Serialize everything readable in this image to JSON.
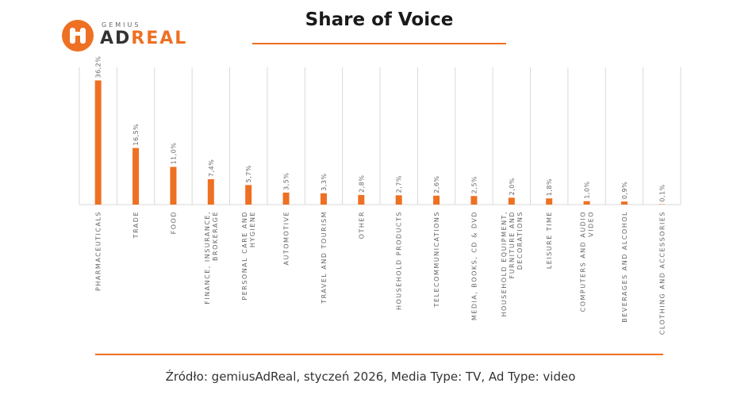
{
  "logo": {
    "small": "GEMIUS",
    "big_a": "AD",
    "big_b": "REAL"
  },
  "title": "Share of Voice",
  "source": "Źródło: gemiusAdReal, styczeń 2026, Media Type: TV, Ad Type: video",
  "colors": {
    "accent": "#ee7023",
    "bar": "#ee7023",
    "grid": "#d9d9d9"
  },
  "chart_data": {
    "type": "bar",
    "title": "Share of Voice",
    "ylabel": "",
    "xlabel": "",
    "ylim": [
      0,
      40
    ],
    "grid": true,
    "categories": [
      [
        "PHARMACEUTICALS"
      ],
      [
        "TRADE"
      ],
      [
        "FOOD"
      ],
      [
        "FINANCE, INSURANCE,",
        "BROKERAGE"
      ],
      [
        "PERSONAL CARE AND",
        "HYGIENE"
      ],
      [
        "AUTOMOTIVE"
      ],
      [
        "TRAVEL AND TOURISM"
      ],
      [
        "OTHER"
      ],
      [
        "HOUSEHOLD PRODUCTS"
      ],
      [
        "TELECOMMUNICATIONS"
      ],
      [
        "MEDIA, BOOKS, CD & DVD"
      ],
      [
        "HOUSEHOLD EQUIPMENT,",
        "FURNITURE AND",
        "DECORATIONS"
      ],
      [
        "LEISURE TIME"
      ],
      [
        "COMPUTERS AND AUDIO",
        "VIDEO"
      ],
      [
        "BEVERAGES AND ALCOHOL"
      ],
      [
        "CLOTHING AND ACCESSORIES"
      ]
    ],
    "values": [
      36.2,
      16.5,
      11.0,
      7.4,
      5.7,
      3.5,
      3.3,
      2.8,
      2.7,
      2.6,
      2.5,
      2.0,
      1.8,
      1.0,
      0.9,
      0.1
    ],
    "value_labels": [
      "36,2%",
      "16,5%",
      "11,0%",
      "7,4%",
      "5,7%",
      "3,5%",
      "3,3%",
      "2,8%",
      "2,7%",
      "2,6%",
      "2,5%",
      "2,0%",
      "1,8%",
      "1,0%",
      "0,9%",
      "0,1%"
    ]
  }
}
